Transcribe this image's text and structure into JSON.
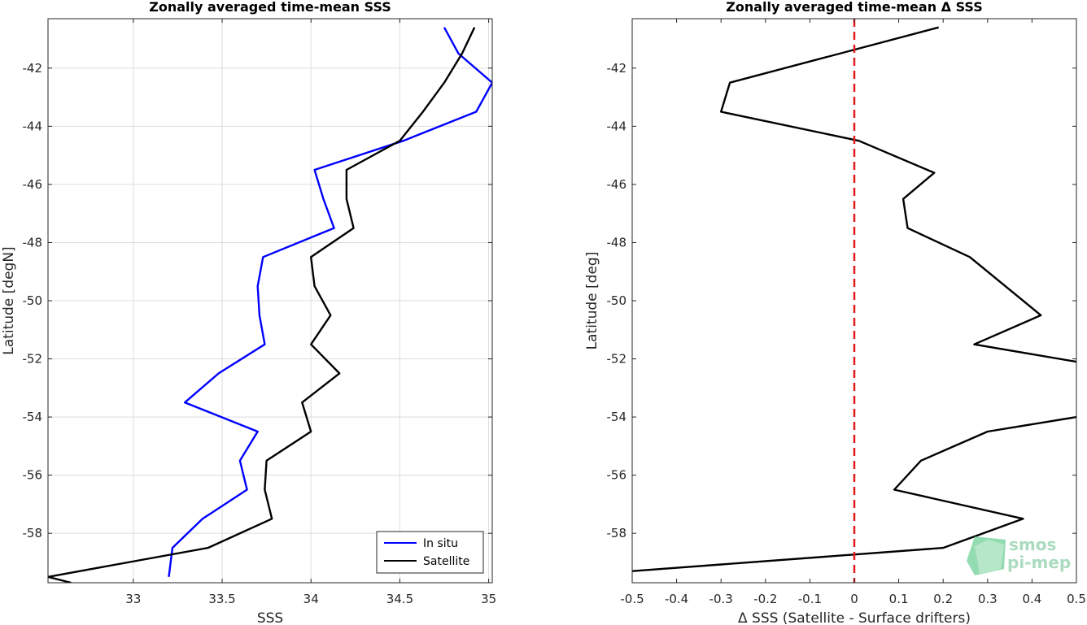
{
  "chart_data": [
    {
      "type": "line",
      "title": "Zonally averaged time-mean SSS",
      "xlabel": "SSS",
      "ylabel": "Latitude [degN]",
      "xlim": [
        32.52,
        35.02
      ],
      "ylim": [
        -59.7,
        -40.3
      ],
      "xticks": [
        33,
        33.5,
        34,
        34.5,
        35
      ],
      "xtick_labels": [
        "33",
        "33.5",
        "34",
        "34.5",
        "35"
      ],
      "yticks": [
        -58,
        -56,
        -54,
        -52,
        -50,
        -48,
        -46,
        -44,
        -42
      ],
      "ytick_labels": [
        "-58",
        "-56",
        "-54",
        "-52",
        "-50",
        "-48",
        "-46",
        "-44",
        "-42"
      ],
      "grid": true,
      "legend_position": "bottom-right",
      "series": [
        {
          "name": "In situ",
          "color": "#0000ff",
          "x": [
            33.2,
            33.22,
            33.39,
            33.64,
            33.6,
            33.7,
            33.29,
            33.48,
            33.74,
            33.71,
            33.7,
            33.73,
            34.13,
            34.07,
            34.02,
            34.52,
            34.93,
            35.02,
            34.83,
            34.75
          ],
          "y": [
            -59.5,
            -58.5,
            -57.5,
            -56.5,
            -55.5,
            -54.5,
            -53.5,
            -52.5,
            -51.5,
            -50.5,
            -49.5,
            -48.5,
            -47.5,
            -46.5,
            -45.5,
            -44.5,
            -43.5,
            -42.5,
            -41.5,
            -40.6
          ]
        },
        {
          "name": "Satellite",
          "color": "#000000",
          "x": [
            32.65,
            32.52,
            33.42,
            33.78,
            33.74,
            33.75,
            34.0,
            33.95,
            34.16,
            34.0,
            34.11,
            34.02,
            34.0,
            34.24,
            34.2,
            34.2,
            34.5,
            34.63,
            34.75,
            34.85,
            34.92
          ],
          "y": [
            -59.7,
            -59.5,
            -58.5,
            -57.5,
            -56.5,
            -55.5,
            -54.5,
            -53.5,
            -52.5,
            -51.5,
            -50.5,
            -49.5,
            -48.5,
            -47.5,
            -46.5,
            -45.5,
            -44.5,
            -43.5,
            -42.5,
            -41.5,
            -40.6
          ]
        }
      ]
    },
    {
      "type": "line",
      "title": "Zonally averaged time-mean Δ SSS",
      "xlabel": "Δ SSS (Satellite - Surface drifters)",
      "ylabel": "Latitude [deg]",
      "xlim": [
        -0.5,
        0.5
      ],
      "ylim": [
        -59.7,
        -40.3
      ],
      "xticks": [
        -0.5,
        -0.4,
        -0.3,
        -0.2,
        -0.1,
        0,
        0.1,
        0.2,
        0.3,
        0.4,
        0.5
      ],
      "xtick_labels": [
        "-0.5",
        "-0.4",
        "-0.3",
        "-0.2",
        "-0.1",
        "0",
        "0.1",
        "0.2",
        "0.3",
        "0.4",
        "0.5"
      ],
      "yticks": [
        -58,
        -56,
        -54,
        -52,
        -50,
        -48,
        -46,
        -44,
        -42
      ],
      "ytick_labels": [
        "-58",
        "-56",
        "-54",
        "-52",
        "-50",
        "-48",
        "-46",
        "-44",
        "-42"
      ],
      "grid": false,
      "reference_line": {
        "x": 0,
        "color": "#e31a1c",
        "style": "dashed"
      },
      "series": [
        {
          "color": "#000000",
          "segments": [
            {
              "x": [
                0.19,
                -0.28,
                -0.3,
                0.01,
                0.18,
                0.11,
                0.12,
                0.26,
                0.34,
                0.42,
                0.27,
                0.5
              ],
              "y": [
                -40.6,
                -42.5,
                -43.5,
                -44.5,
                -45.6,
                -46.5,
                -47.5,
                -48.5,
                -49.5,
                -50.5,
                -51.5,
                -52.1
              ]
            },
            {
              "x": [
                0.5,
                0.3,
                0.15,
                0.09,
                0.38,
                0.2,
                -0.5
              ],
              "y": [
                -54.0,
                -54.5,
                -55.5,
                -56.5,
                -57.5,
                -58.5,
                -59.3
              ]
            }
          ]
        }
      ]
    }
  ],
  "logo": {
    "line1": "smos",
    "line2": "pi-mep"
  }
}
